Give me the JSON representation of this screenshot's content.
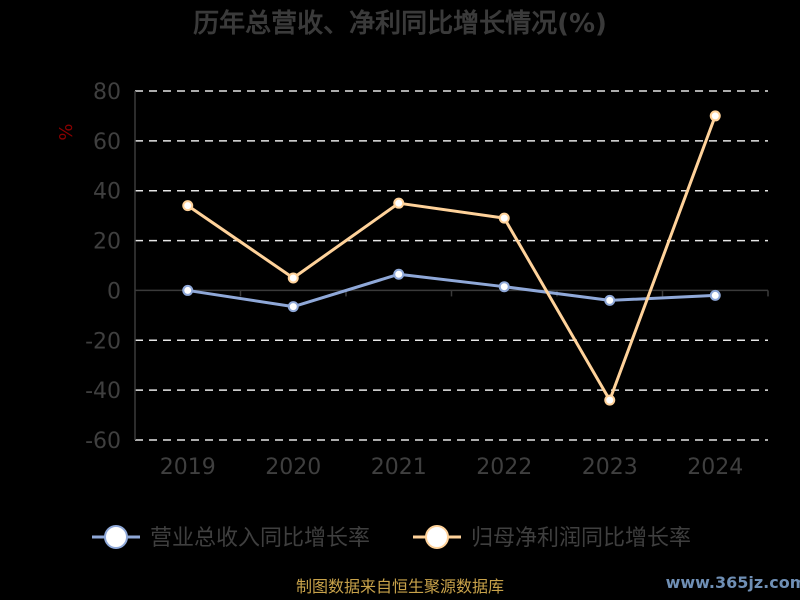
{
  "chart_data": {
    "type": "line",
    "title": "历年总营收、净利同比增长情况(%)",
    "ylabel": "%",
    "categories": [
      "2019",
      "2020",
      "2021",
      "2022",
      "2023",
      "2024"
    ],
    "ylim": [
      -60,
      80
    ],
    "yticks": [
      80,
      60,
      40,
      20,
      0,
      -20,
      -40,
      -60
    ],
    "grid": true,
    "legend_position": "bottom",
    "series": [
      {
        "name": "营业总收入同比增长率",
        "color": "#8fa8d8",
        "values": [
          0,
          -6.5,
          6.5,
          1.5,
          -4,
          -2
        ]
      },
      {
        "name": "归母净利润同比增长率",
        "color": "#ffd29a",
        "values": [
          34,
          5,
          35,
          29,
          -44,
          70
        ]
      }
    ]
  },
  "footer": {
    "source": "制图数据来自恒生聚源数据库",
    "watermark": "www.365jz.com"
  }
}
